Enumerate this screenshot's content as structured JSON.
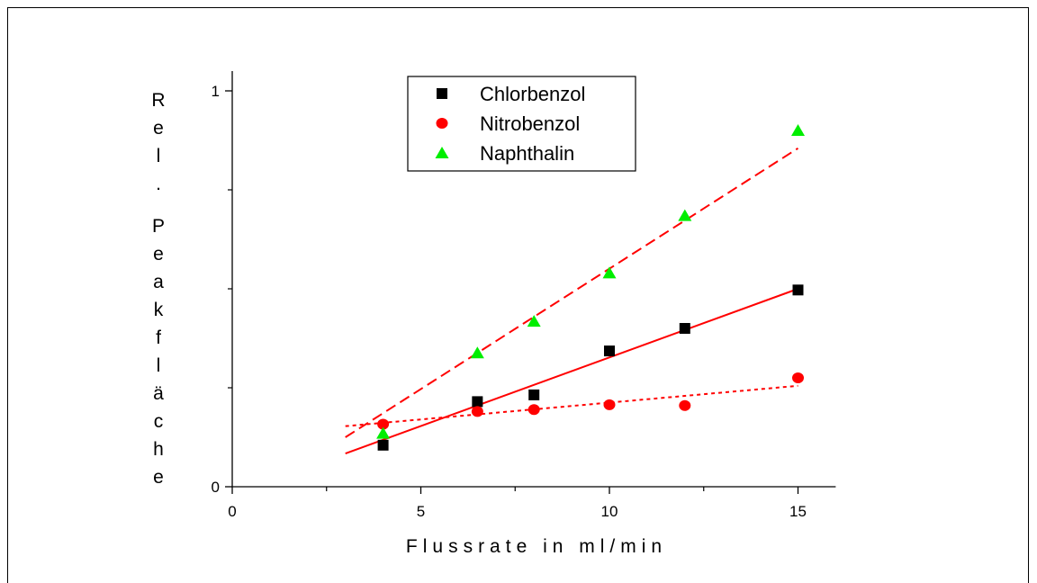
{
  "chart_data": {
    "type": "scatter",
    "xlabel": "Flussrate in ml/min",
    "ylabel": "Rel. Peakfläche",
    "xlim": [
      0,
      16
    ],
    "ylim": [
      0,
      1.05
    ],
    "x_ticks": [
      0,
      5,
      10,
      15
    ],
    "y_ticks": [
      0,
      1
    ],
    "y_minor_ticks": [
      0.25,
      0.5,
      0.75
    ],
    "x_minor_ticks": [
      2.5,
      7.5,
      12.5
    ],
    "grid": false,
    "legend_position": "top-center",
    "series": [
      {
        "name": "Chlorbenzol",
        "marker": "square",
        "color": "#000000",
        "x": [
          4,
          6.5,
          8,
          10,
          12,
          15
        ],
        "y": [
          0.105,
          0.215,
          0.232,
          0.343,
          0.4,
          0.497
        ],
        "fit": {
          "x": [
            3,
            15
          ],
          "y": [
            0.084,
            0.5
          ],
          "style": "solid",
          "color": "#ff0000"
        }
      },
      {
        "name": "Nitrobenzol",
        "marker": "circle",
        "color": "#ff0000",
        "x": [
          4,
          6.5,
          8,
          10,
          12,
          15
        ],
        "y": [
          0.158,
          0.19,
          0.195,
          0.207,
          0.205,
          0.275
        ],
        "fit": {
          "x": [
            3,
            15
          ],
          "y": [
            0.153,
            0.255
          ],
          "style": "dotted",
          "color": "#ff0000"
        }
      },
      {
        "name": "Naphthalin",
        "marker": "triangle",
        "color": "#00ee00",
        "x": [
          4,
          6.5,
          8,
          10,
          12,
          15
        ],
        "y": [
          0.135,
          0.338,
          0.418,
          0.54,
          0.685,
          0.9
        ],
        "fit": {
          "x": [
            3,
            15
          ],
          "y": [
            0.125,
            0.855
          ],
          "style": "dashed",
          "color": "#ff0000"
        }
      }
    ]
  }
}
